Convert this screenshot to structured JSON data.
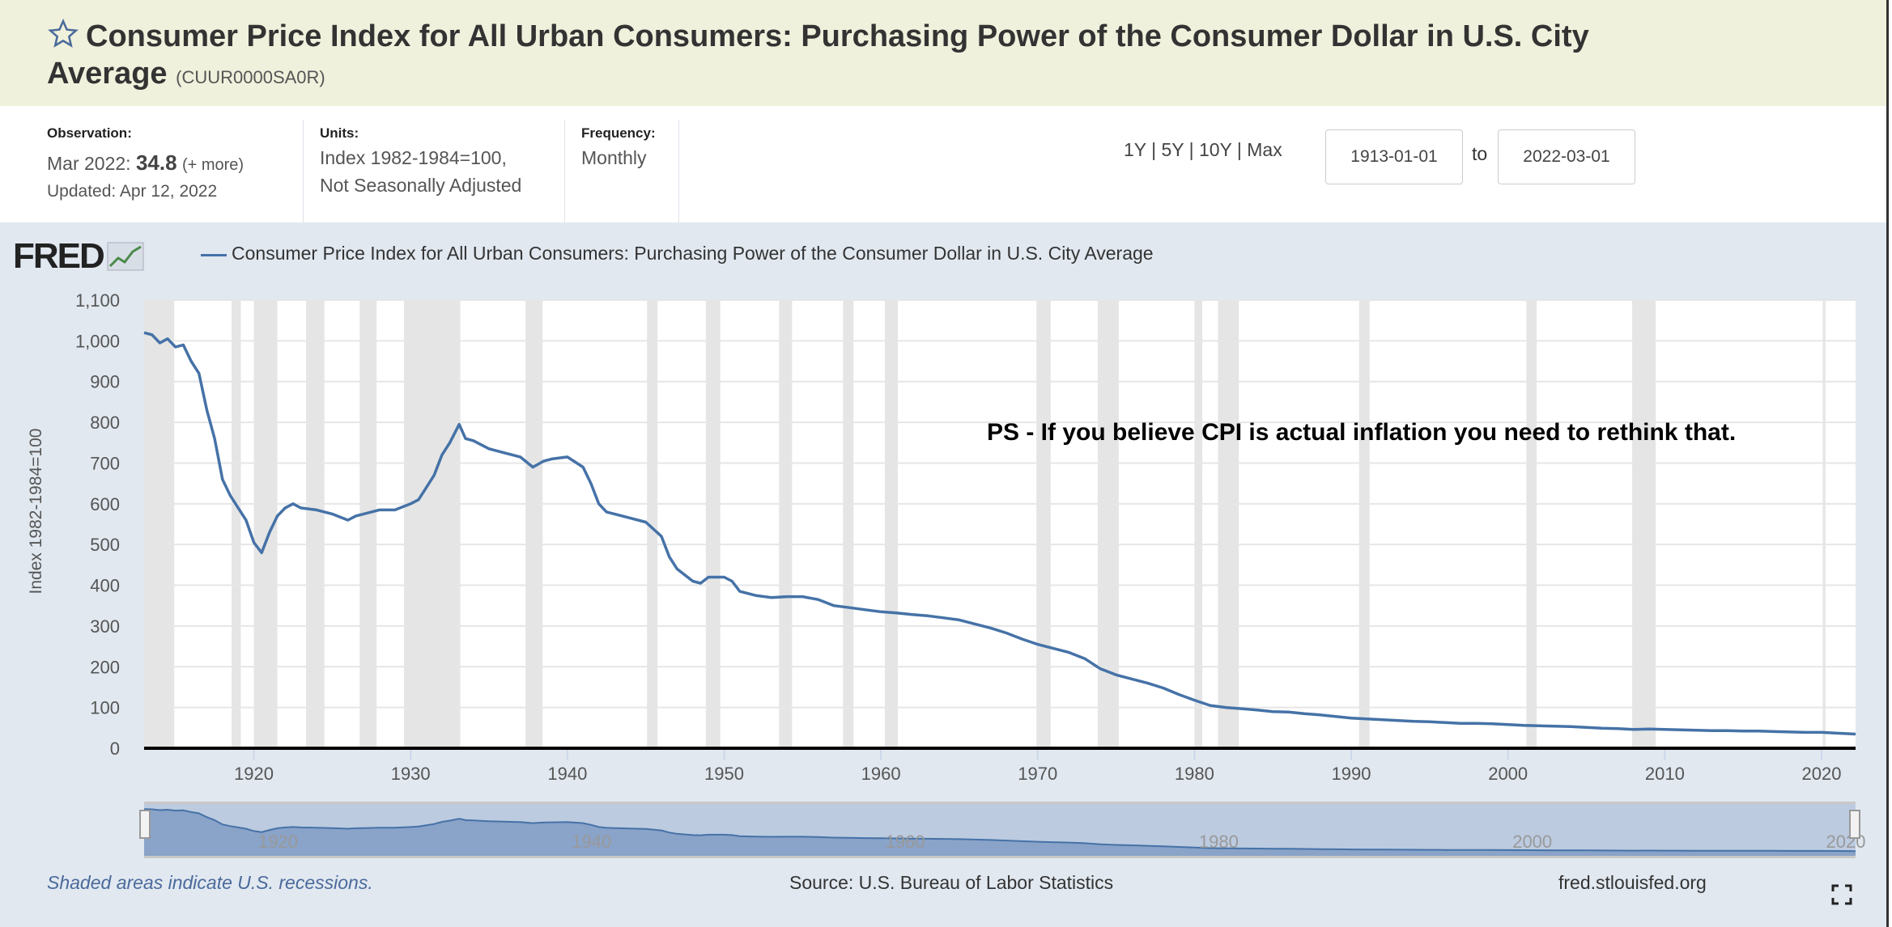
{
  "header": {
    "title": "Consumer Price Index for All Urban Consumers: Purchasing Power of the Consumer Dollar in U.S. City Average",
    "series_id": "(CUUR0000SA0R)",
    "favorite_icon": "star-outline-icon"
  },
  "info": {
    "observation_label": "Observation:",
    "observation_date": "Mar 2022:",
    "observation_value": "34.8",
    "more_link": "(+ more)",
    "updated": "Updated: Apr 12, 2022",
    "units_label": "Units:",
    "units_line1": "Index 1982-1984=100,",
    "units_line2": "Not Seasonally Adjusted",
    "frequency_label": "Frequency:",
    "frequency_value": "Monthly"
  },
  "range": {
    "options": [
      "1Y",
      "5Y",
      "10Y",
      "Max"
    ],
    "separator": " | ",
    "start": "1913-01-01",
    "to_label": "to",
    "end": "2022-03-01"
  },
  "graph": {
    "logo": "FRED",
    "legend": "Consumer Price Index for All Urban Consumers: Purchasing Power of the Consumer Dollar in U.S. City Average",
    "annotation": "PS - If you believe CPI is actual inflation you need to rethink that.",
    "footer_note": "Shaded areas indicate U.S. recessions.",
    "source": "Source: U.S. Bureau of Labor Statistics",
    "url": "fred.stlouisfed.org",
    "fullscreen_icon": "fullscreen-icon"
  },
  "chart_data": {
    "type": "line",
    "title": "",
    "xlabel": "",
    "ylabel": "Index 1982-1984=100",
    "xlim": [
      1913.0,
      2022.17
    ],
    "ylim": [
      0,
      1100
    ],
    "yticks": [
      0,
      100,
      200,
      300,
      400,
      500,
      600,
      700,
      800,
      900,
      1000,
      1100
    ],
    "ytick_labels": [
      "0",
      "100",
      "200",
      "300",
      "400",
      "500",
      "600",
      "700",
      "800",
      "900",
      "1,000",
      "1,100"
    ],
    "xticks": [
      1920,
      1930,
      1940,
      1950,
      1960,
      1970,
      1980,
      1990,
      2000,
      2010,
      2020
    ],
    "xtick_labels": [
      "1920",
      "1930",
      "1940",
      "1950",
      "1960",
      "1970",
      "1980",
      "1990",
      "2000",
      "2010",
      "2020"
    ],
    "navigator_labels": [
      "1920",
      "1940",
      "1960",
      "1980",
      "2000",
      "2020"
    ],
    "grid": true,
    "line_color": "#4572a7",
    "recession_color": "#e5e5e5",
    "recessions": [
      [
        1913.0,
        1914.92
      ],
      [
        1918.58,
        1919.17
      ],
      [
        1920.0,
        1921.5
      ],
      [
        1923.33,
        1924.5
      ],
      [
        1926.75,
        1927.83
      ],
      [
        1929.58,
        1933.17
      ],
      [
        1937.33,
        1938.42
      ],
      [
        1945.08,
        1945.75
      ],
      [
        1948.83,
        1949.75
      ],
      [
        1953.5,
        1954.33
      ],
      [
        1957.58,
        1958.25
      ],
      [
        1960.25,
        1961.08
      ],
      [
        1969.92,
        1970.83
      ],
      [
        1973.83,
        1975.17
      ],
      [
        1980.0,
        1980.5
      ],
      [
        1981.5,
        1982.83
      ],
      [
        1990.5,
        1991.17
      ],
      [
        2001.17,
        2001.83
      ],
      [
        2007.92,
        2009.42
      ],
      [
        2020.08,
        2020.25
      ]
    ],
    "series": [
      {
        "x": [
          1913,
          1913.5,
          1914,
          1914.5,
          1915,
          1915.5,
          1916,
          1916.5,
          1917,
          1917.5,
          1918,
          1918.5,
          1919,
          1919.5,
          1920,
          1920.5,
          1921,
          1921.5,
          1922,
          1922.5,
          1923,
          1924,
          1925,
          1926,
          1926.5,
          1927,
          1928,
          1929,
          1930,
          1930.5,
          1931,
          1931.5,
          1932,
          1932.5,
          1933.1,
          1933.5,
          1934,
          1935,
          1936,
          1937,
          1937.8,
          1938.5,
          1939,
          1940,
          1941,
          1941.5,
          1942,
          1942.5,
          1943,
          1944,
          1945,
          1946,
          1946.5,
          1947,
          1948,
          1948.5,
          1949,
          1950,
          1950.5,
          1951,
          1952,
          1953,
          1954,
          1955,
          1956,
          1957,
          1958,
          1959,
          1960,
          1961,
          1962,
          1963,
          1964,
          1965,
          1966,
          1967,
          1968,
          1969,
          1970,
          1971,
          1972,
          1973,
          1974,
          1975,
          1976,
          1977,
          1978,
          1979,
          1980,
          1981,
          1982,
          1983,
          1984,
          1985,
          1986,
          1987,
          1988,
          1989,
          1990,
          1991,
          1992,
          1993,
          1994,
          1995,
          1996,
          1997,
          1998,
          1999,
          2000,
          2001,
          2002,
          2003,
          2004,
          2005,
          2006,
          2007,
          2008,
          2009,
          2010,
          2011,
          2012,
          2013,
          2014,
          2015,
          2016,
          2017,
          2018,
          2019,
          2020,
          2021,
          2022.17
        ],
        "y": [
          1020,
          1015,
          995,
          1005,
          985,
          990,
          950,
          920,
          830,
          760,
          660,
          620,
          590,
          560,
          505,
          480,
          530,
          570,
          590,
          600,
          590,
          585,
          575,
          560,
          570,
          575,
          585,
          585,
          600,
          610,
          640,
          670,
          720,
          750,
          795,
          760,
          755,
          735,
          725,
          715,
          690,
          705,
          710,
          715,
          690,
          650,
          600,
          580,
          575,
          565,
          555,
          520,
          470,
          440,
          410,
          405,
          420,
          420,
          410,
          385,
          375,
          370,
          372,
          372,
          365,
          350,
          345,
          340,
          335,
          332,
          328,
          325,
          320,
          315,
          305,
          295,
          283,
          268,
          255,
          245,
          235,
          220,
          195,
          180,
          170,
          160,
          148,
          132,
          118,
          105,
          100,
          97,
          94,
          90,
          89,
          85,
          82,
          78,
          74,
          72,
          70,
          68,
          66,
          65,
          63,
          61,
          61,
          60,
          58,
          56,
          55,
          54,
          53,
          51,
          49,
          48,
          46,
          47,
          46,
          45,
          44,
          43,
          43,
          42,
          42,
          41,
          40,
          39,
          39,
          37,
          34.8
        ]
      }
    ]
  }
}
